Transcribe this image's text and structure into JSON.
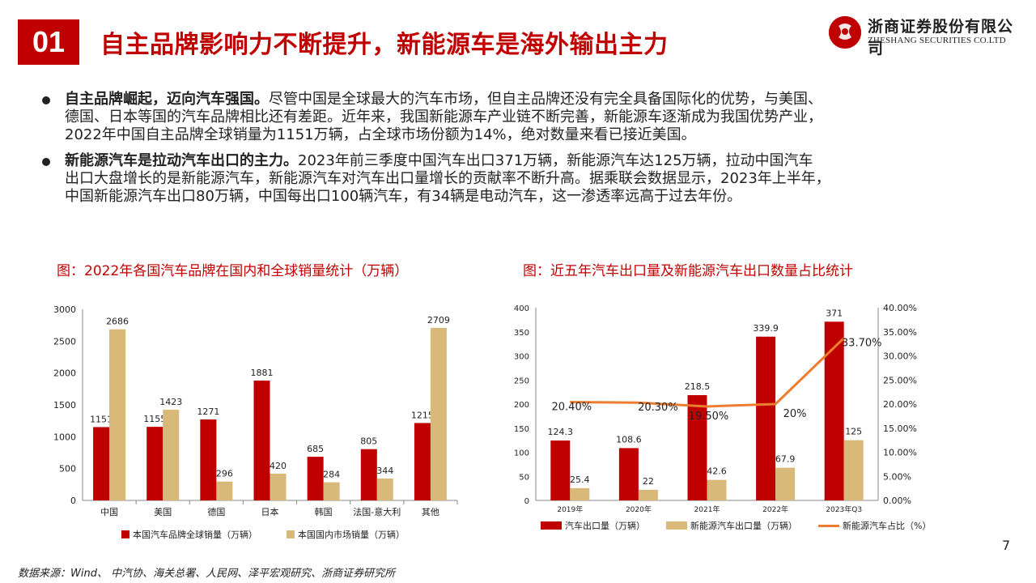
{
  "slide": {
    "number": "01",
    "title": "自主品牌影响力不断提升，新能源车是海外输出主力"
  },
  "logo": {
    "name_cn": "浙商证券股份有限公司",
    "name_en": "ZHESHANG SECURITIES CO.LTD"
  },
  "bullets": [
    {
      "bold": "自主品牌崛起，迈向汽车强国。",
      "lines": [
        "尽管中国是全球最大的汽车市场，但自主品牌还没有完全具备国际化的优势，与美国、",
        "德国、日本等国的汽车品牌相比还有差距。近年来，我国新能源车产业链不断完善，新能源车逐渐成为我国优势产业，",
        "2022年中国自主品牌全球销量为1151万辆，占全球市场份额为14%，绝对数量来看已接近美国。"
      ]
    },
    {
      "bold": "新能源汽车是拉动汽车出口的主力。",
      "lines": [
        "2023年前三季度中国汽车出口371万辆，新能源汽车达125万辆，拉动中国汽车",
        "出口大盘增长的是新能源汽车，新能源汽车对汽车出口量增长的贡献率不断升高。据乘联会数据显示，2023年上半年，",
        "中国新能源汽车出口80万辆，中国每出口100辆汽车，有34辆是电动汽车，这一渗透率远高于过去年份。"
      ]
    }
  ],
  "chart_data": [
    {
      "type": "bar",
      "title": "图：2022年各国汽车品牌在国内和全球销量统计（万辆）",
      "categories": [
        "中国",
        "美国",
        "德国",
        "日本",
        "韩国",
        "法国-意大利",
        "其他"
      ],
      "series": [
        {
          "name": "本国汽车品牌全球销量（万辆）",
          "color": "#c00000",
          "values": [
            1151,
            1155,
            1271,
            1881,
            685,
            805,
            1215
          ]
        },
        {
          "name": "本国国内市场销量（万辆）",
          "color": "#d9b97a",
          "values": [
            2686,
            1423,
            296,
            420,
            284,
            344,
            2709
          ]
        }
      ],
      "ylim": [
        0,
        3000
      ],
      "yticks": [
        "0",
        "500",
        "1000",
        "1500",
        "2000",
        "2500",
        "3000"
      ],
      "grid": false,
      "legend": "bottom"
    },
    {
      "type": "bar",
      "title": "图：近五年汽车出口量及新能源汽车出口数量占比统计",
      "categories": [
        "2019年",
        "2020年",
        "2021年",
        "2022年",
        "2023年Q3"
      ],
      "series": [
        {
          "name": "汽车出口量（万辆）",
          "color": "#c00000",
          "axis": "left",
          "values": [
            124.3,
            108.6,
            218.5,
            339.9,
            371
          ]
        },
        {
          "name": "新能源汽车出口量（万辆）",
          "color": "#d9b97a",
          "axis": "left",
          "values": [
            25.4,
            22,
            42.6,
            67.9,
            125
          ]
        },
        {
          "name": "新能源汽车占比（%）",
          "type": "line",
          "color": "#ed7d31",
          "axis": "right",
          "values": [
            20.4,
            20.3,
            19.5,
            20,
            33.7
          ],
          "labels": [
            "20.40%",
            "20.30%",
            "19.50%",
            "20%",
            "33.70%"
          ]
        }
      ],
      "ylim": [
        0,
        400
      ],
      "yticks": [
        "0",
        "50",
        "100",
        "150",
        "200",
        "250",
        "300",
        "350",
        "400"
      ],
      "y2lim": [
        0,
        40
      ],
      "y2ticks": [
        "0.00%",
        "5.00%",
        "10.00%",
        "15.00%",
        "20.00%",
        "25.00%",
        "30.00%",
        "35.00%",
        "40.00%"
      ],
      "grid": false,
      "legend": "bottom"
    }
  ],
  "footer": {
    "source": "数据来源：Wind、 中汽协、海关总署、人民网、泽平宏观研究、浙商证券研究所",
    "page": "7"
  }
}
